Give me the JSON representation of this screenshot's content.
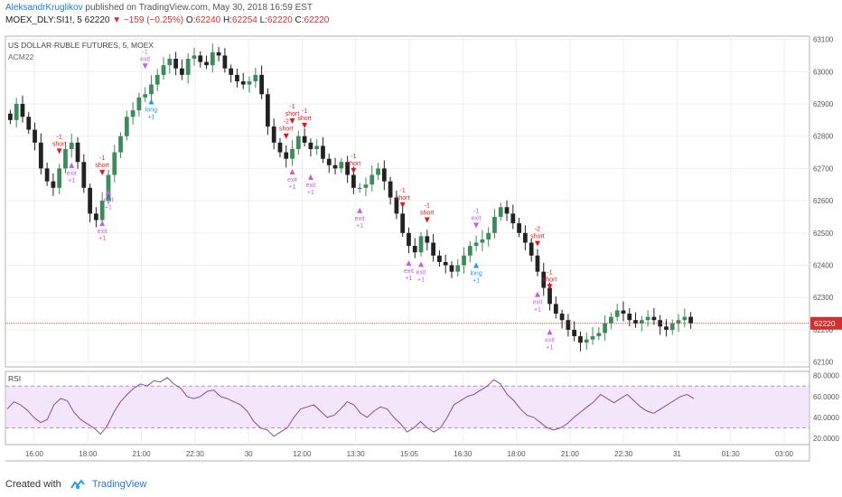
{
  "header": {
    "author": "AleksandrKruglikov",
    "published_text": "published on TradingView.com, May 30, 2018 16:59 EST",
    "symbol": "MOEX_DLY:SI1!, 5",
    "last": "62220",
    "change": "▼ −159 (−0.25%)",
    "open_label": "O:",
    "open": "62240",
    "high_label": "H:",
    "high": "62254",
    "low_label": "L:",
    "low": "62220",
    "close_label": "C:",
    "close": "62220"
  },
  "footer": {
    "created_with": "Created with",
    "brand": "TradingView"
  },
  "colors": {
    "up": "#3d8a5a",
    "down": "#222222",
    "short": "#e0181e",
    "exit": "#c060e0",
    "long": "#2196f3",
    "rsi": "#8a4a9e",
    "rsi_band": "#f3e6fb",
    "price_line": "#d32f2f",
    "grid": "#eeeeee"
  },
  "chart_data": [
    {
      "type": "candlestick",
      "title": "US DOLLAR-RUBLE FUTURES, 5, MOEX",
      "indicator_label": "ACM22",
      "y_ticks": [
        62100,
        62200,
        62300,
        62400,
        62500,
        62600,
        62700,
        62800,
        62900,
        63000,
        63100
      ],
      "ylim": [
        62085,
        63110
      ],
      "last_price": 62220,
      "last_price_label": "62220",
      "x_tick_labels": [
        "16:00",
        "18:00",
        "21:00",
        "22:30",
        "30",
        "12:00",
        "13:30",
        "15:05",
        "16:30",
        "18:00",
        "21:00",
        "22:30",
        "31",
        "01:30",
        "03:00"
      ],
      "close_path": [
        62850,
        62900,
        62860,
        62820,
        62780,
        62700,
        62660,
        62640,
        62700,
        62760,
        62780,
        62720,
        62640,
        62560,
        62540,
        62600,
        62680,
        62750,
        62800,
        62860,
        62880,
        62920,
        62930,
        62960,
        62990,
        63020,
        63040,
        63010,
        62990,
        63040,
        63050,
        63030,
        63020,
        63060,
        63050,
        63010,
        62990,
        62970,
        62960,
        62970,
        62990,
        62930,
        62830,
        62780,
        62750,
        62730,
        62760,
        62800,
        62780,
        62760,
        62770,
        62730,
        62710,
        62700,
        62720,
        62680,
        62640,
        62640,
        62650,
        62680,
        62700,
        62660,
        62610,
        62560,
        62500,
        62460,
        62440,
        62490,
        62470,
        62430,
        62410,
        62400,
        62380,
        62400,
        62430,
        62460,
        62470,
        62480,
        62500,
        62550,
        62580,
        62560,
        62530,
        62500,
        62470,
        62430,
        62380,
        62330,
        62280,
        62250,
        62230,
        62200,
        62180,
        62160,
        62170,
        62180,
        62190,
        62220,
        62240,
        62260,
        62250,
        62230,
        62220,
        62230,
        62240,
        62230,
        62210,
        62200,
        62220,
        62230,
        62240,
        62220
      ],
      "signals": [
        {
          "type": "short",
          "label": "short",
          "qty": "-1",
          "at": 0.07
        },
        {
          "type": "exit",
          "label": "exit",
          "qty": "+1",
          "at": 0.09
        },
        {
          "type": "short",
          "label": "short",
          "qty": "-1",
          "at": 0.13
        },
        {
          "type": "exit",
          "label": "exit",
          "qty": "+1",
          "at": 0.14
        },
        {
          "type": "exit",
          "label": "exit",
          "qty": "+1",
          "at": 0.135
        },
        {
          "type": "exit",
          "label": "exit",
          "qty": "-1",
          "at": 0.2
        },
        {
          "type": "long",
          "label": "long",
          "qty": "+1",
          "at": 0.205
        },
        {
          "type": "short",
          "label": "short",
          "qty": "-2",
          "at": 0.4
        },
        {
          "type": "short",
          "label": "short",
          "qty": "-1",
          "at": 0.415
        },
        {
          "type": "short",
          "label": "short",
          "qty": "-1",
          "at": 0.43
        },
        {
          "type": "exit",
          "label": "exit",
          "qty": "+1",
          "at": 0.41
        },
        {
          "type": "exit",
          "label": "exit",
          "qty": "+1",
          "at": 0.44
        },
        {
          "type": "short",
          "label": "short",
          "qty": "-1",
          "at": 0.5
        },
        {
          "type": "exit",
          "label": "exit",
          "qty": "+1",
          "at": 0.51
        },
        {
          "type": "short",
          "label": "short",
          "qty": "-1",
          "at": 0.575
        },
        {
          "type": "exit",
          "label": "exit",
          "qty": "+1",
          "at": 0.58
        },
        {
          "type": "short",
          "label": "short",
          "qty": "-1",
          "at": 0.61
        },
        {
          "type": "exit",
          "label": "exit",
          "qty": "+1",
          "at": 0.6
        },
        {
          "type": "exit",
          "label": "exit",
          "qty": "-1",
          "at": 0.675
        },
        {
          "type": "long",
          "label": "long",
          "qty": "+1",
          "at": 0.68
        },
        {
          "type": "short",
          "label": "short",
          "qty": "-2",
          "at": 0.765
        },
        {
          "type": "short",
          "label": "short",
          "qty": "-1",
          "at": 0.785
        },
        {
          "type": "exit",
          "label": "exit",
          "qty": "+1",
          "at": 0.77
        },
        {
          "type": "exit",
          "label": "exit",
          "qty": "+1",
          "at": 0.79
        }
      ]
    },
    {
      "type": "line",
      "title": "RSI",
      "y_ticks": [
        "20.0000",
        "40.0000",
        "60.0000",
        "80.0000"
      ],
      "y_tick_values": [
        20,
        40,
        60,
        80
      ],
      "ylim": [
        14,
        84
      ],
      "band": [
        30,
        70
      ],
      "values": [
        48,
        55,
        52,
        47,
        40,
        35,
        38,
        52,
        58,
        56,
        45,
        38,
        34,
        30,
        24,
        32,
        45,
        55,
        62,
        68,
        72,
        70,
        75,
        74,
        78,
        72,
        68,
        60,
        58,
        60,
        65,
        66,
        60,
        58,
        55,
        52,
        46,
        36,
        30,
        28,
        22,
        26,
        30,
        40,
        48,
        50,
        52,
        46,
        40,
        42,
        48,
        55,
        52,
        44,
        40,
        46,
        50,
        48,
        40,
        34,
        26,
        30,
        36,
        30,
        26,
        30,
        40,
        52,
        56,
        60,
        62,
        66,
        70,
        76,
        72,
        62,
        56,
        48,
        42,
        40,
        35,
        30,
        28,
        30,
        34,
        40,
        45,
        50,
        55,
        62,
        58,
        54,
        58,
        62,
        56,
        50,
        46,
        44,
        48,
        52,
        56,
        60,
        62,
        58
      ]
    }
  ]
}
